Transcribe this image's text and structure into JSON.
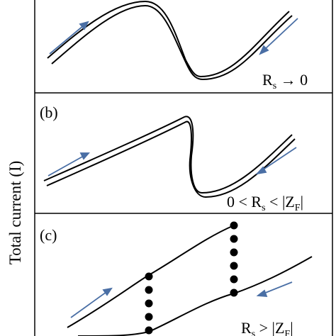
{
  "y_axis_label": "Total current (I)",
  "panels": [
    {
      "label": "",
      "condition": {
        "pre": "R",
        "sub": "s",
        "post": " → 0"
      }
    },
    {
      "label": "(b)",
      "condition": {
        "pre": "0 < R",
        "sub": "s",
        "mid": " < |Z",
        "sub2": "F",
        "post": "|"
      }
    },
    {
      "label": "(c)",
      "condition": {
        "pre": "R",
        "sub": "s",
        "mid": " > |Z",
        "sub2": "F",
        "post": "|"
      }
    }
  ],
  "colors": {
    "curve": "#000000",
    "arrow": "#4a6fa5",
    "frame": "#000000"
  }
}
